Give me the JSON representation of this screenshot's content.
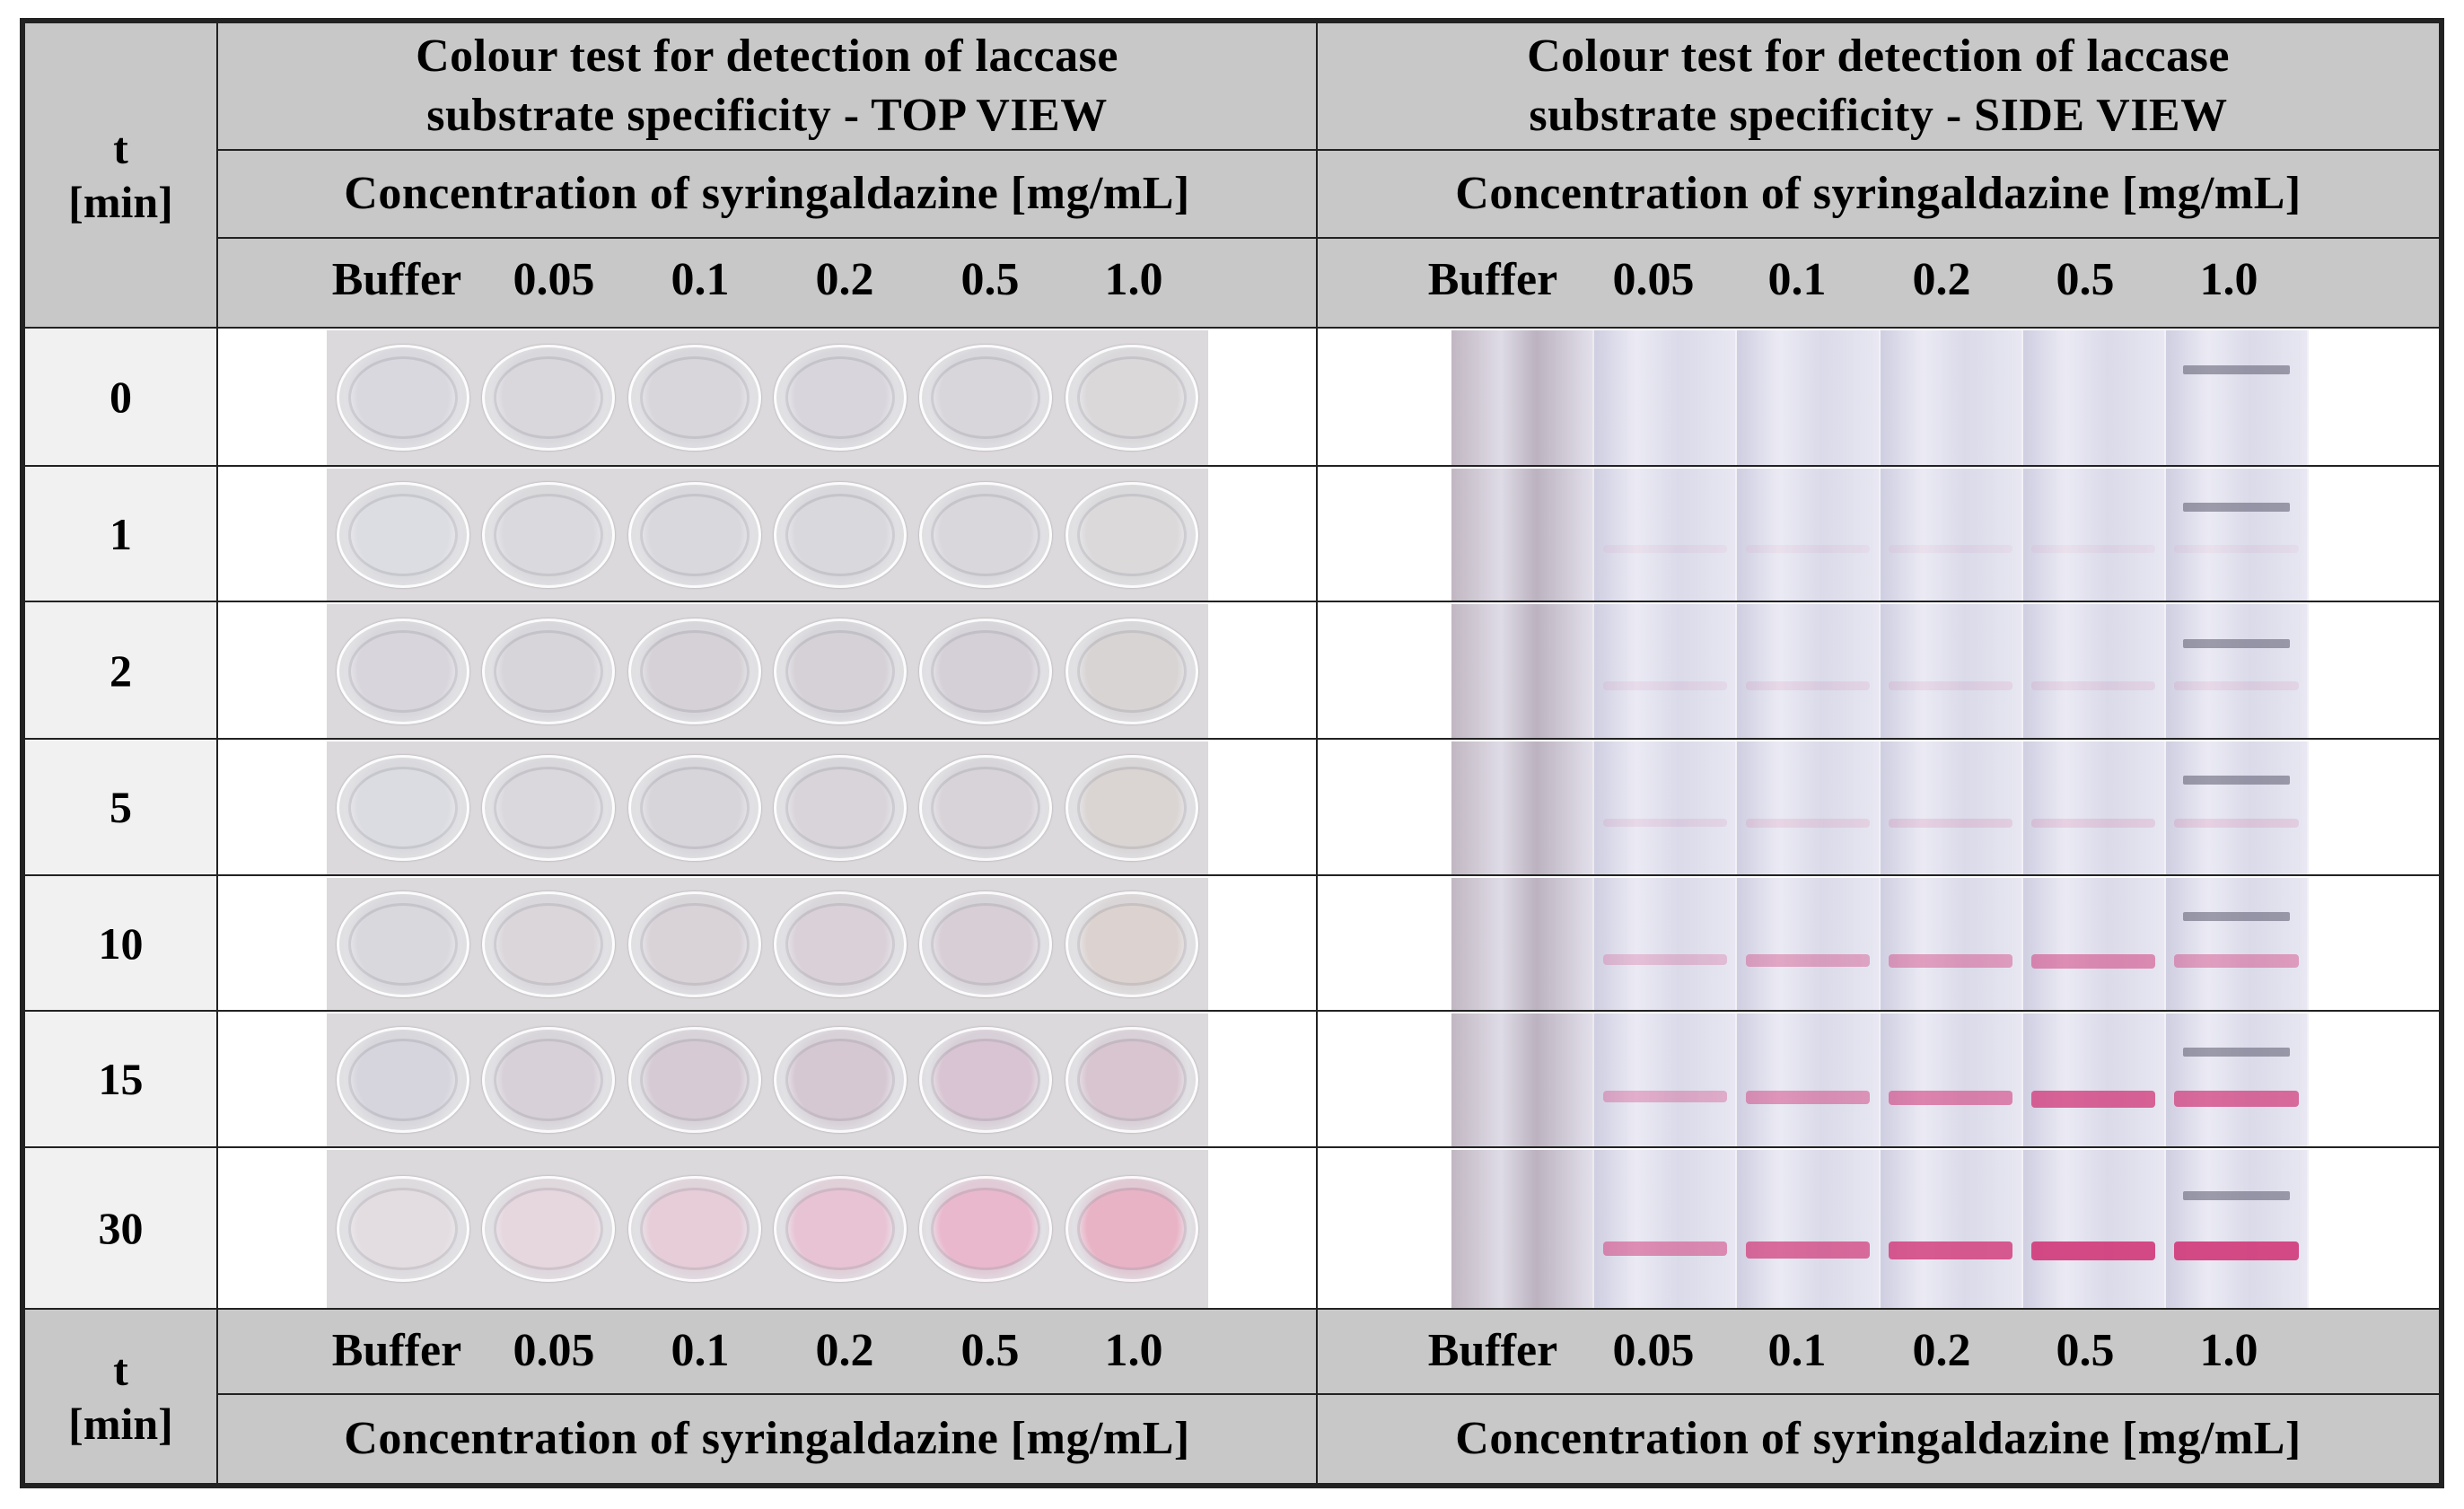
{
  "header": {
    "t_label": "t",
    "min_label": "[min]",
    "top_title_line1": "Colour test for detection of laccase",
    "top_title_line2": "substrate specificity - TOP VIEW",
    "side_title_line1": "Colour test for detection of laccase",
    "side_title_line2": "substrate specificity - SIDE VIEW",
    "concentration_label": "Concentration of syringaldazine [mg/mL]",
    "columns": [
      "Buffer",
      "0.05",
      "0.1",
      "0.2",
      "0.5",
      "1.0"
    ]
  },
  "rows": [
    {
      "t": "0"
    },
    {
      "t": "1"
    },
    {
      "t": "2"
    },
    {
      "t": "5"
    },
    {
      "t": "10"
    },
    {
      "t": "15"
    },
    {
      "t": "30"
    }
  ],
  "footer": {
    "t_label": "t",
    "min_label": "[min]",
    "concentration_label": "Concentration of syringaldazine [mg/mL]",
    "columns": [
      "Buffer",
      "0.05",
      "0.1",
      "0.2",
      "0.5",
      "1.0"
    ]
  },
  "colors": {
    "header_bg": "#c8c8c8",
    "time_cell_bg": "#f1f1f1",
    "border": "#222222",
    "pink_reaction": "#d2407e"
  },
  "well_tints": [
    [
      "#d9d8df",
      "#d9d7dc",
      "#d8d6db",
      "#d8d6dc",
      "#d8d6db",
      "#dad8d9"
    ],
    [
      "#dcdde2",
      "#dadade",
      "#d9d8dd",
      "#d9d8dc",
      "#d9d7db",
      "#dbd9da"
    ],
    [
      "#d8d6dc",
      "#d7d5da",
      "#d5d1d6",
      "#d5d1d7",
      "#d5d0d7",
      "#d8d4d4"
    ],
    [
      "#dbdce1",
      "#dad8dc",
      "#d8d5da",
      "#d8d4d9",
      "#d8d3d8",
      "#dad5d3"
    ],
    [
      "#d9d8dd",
      "#dad6da",
      "#d9d3d8",
      "#d9d1d7",
      "#d8cfd6",
      "#dcd3d0"
    ],
    [
      "#d6d4dc",
      "#d8d0d8",
      "#d6cbd4",
      "#d6c8d3",
      "#d8c4d2",
      "#d8c5cf"
    ],
    [
      "#e3dde1",
      "#e6d6dd",
      "#e6cdd8",
      "#e8c3d3",
      "#eab8cd",
      "#e9b3c6"
    ]
  ],
  "band_intensity": [
    [
      0,
      0,
      0,
      0,
      0,
      0
    ],
    [
      0,
      0.05,
      0.05,
      0.05,
      0.05,
      0.05
    ],
    [
      0,
      0.08,
      0.1,
      0.1,
      0.1,
      0.1
    ],
    [
      0,
      0.1,
      0.12,
      0.15,
      0.15,
      0.15
    ],
    [
      0,
      0.25,
      0.4,
      0.45,
      0.55,
      0.45
    ],
    [
      0,
      0.35,
      0.5,
      0.6,
      0.8,
      0.75
    ],
    [
      0,
      0.55,
      0.75,
      0.85,
      0.95,
      0.95
    ]
  ]
}
